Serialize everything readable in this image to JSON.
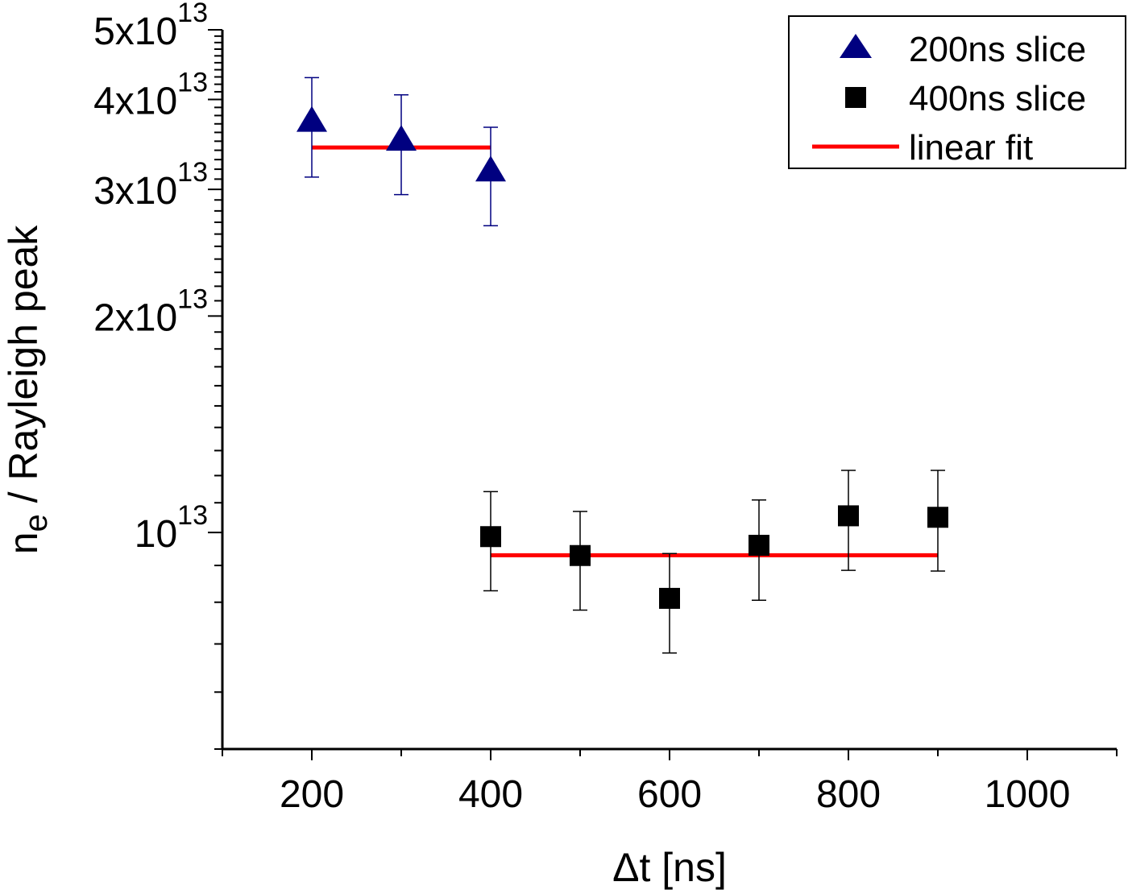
{
  "chart_data": {
    "type": "scatter",
    "xlabel": "Δt [ns]",
    "ylabel_main": "n",
    "ylabel_sub": "e",
    "ylabel_rest": " / Rayleigh peak",
    "xlim": [
      100,
      1100
    ],
    "ylim": [
      5000000000000.0,
      50000000000000.0
    ],
    "yscale": "log",
    "grid": false,
    "legend_placement": "top-right",
    "x_ticks": [
      200,
      400,
      600,
      800,
      1000
    ],
    "x_tick_labels": [
      "200",
      "400",
      "600",
      "800",
      "1000"
    ],
    "y_ticks": [
      {
        "value": 10000000000000.0,
        "mant": "",
        "base": "10",
        "exp": "13"
      },
      {
        "value": 20000000000000.0,
        "mant": "2x",
        "base": "10",
        "exp": "13"
      },
      {
        "value": 30000000000000.0,
        "mant": "3x",
        "base": "10",
        "exp": "13"
      },
      {
        "value": 40000000000000.0,
        "mant": "4x",
        "base": "10",
        "exp": "13"
      },
      {
        "value": 50000000000000.0,
        "mant": "5x",
        "base": "10",
        "exp": "13"
      }
    ],
    "series": [
      {
        "name": "200ns slice",
        "marker": "triangle",
        "color": "#000080",
        "x": [
          200,
          300,
          400
        ],
        "y": [
          37400000000000.0,
          35200000000000.0,
          31900000000000.0
        ],
        "y_err_high": [
          42900000000000.0,
          40600000000000.0,
          36600000000000.0
        ],
        "y_err_low": [
          31200000000000.0,
          29500000000000.0,
          26700000000000.0
        ]
      },
      {
        "name": "400ns slice",
        "marker": "square",
        "color": "#000000",
        "x": [
          400,
          500,
          600,
          700,
          800,
          900
        ],
        "y": [
          9870000000000.0,
          9290000000000.0,
          8100000000000.0,
          9600000000000.0,
          10550000000000.0,
          10500000000000.0
        ],
        "y_err_high": [
          11400000000000.0,
          10700000000000.0,
          9350000000000.0,
          11100000000000.0,
          12200000000000.0,
          12200000000000.0
        ],
        "y_err_low": [
          8300000000000.0,
          7800000000000.0,
          6800000000000.0,
          8050000000000.0,
          8860000000000.0,
          8840000000000.0
        ]
      }
    ],
    "fits": [
      {
        "name": "linear fit",
        "color": "#ff0000",
        "x": [
          200,
          400
        ],
        "y": [
          34300000000000.0,
          34300000000000.0
        ]
      },
      {
        "name": "linear fit",
        "color": "#ff0000",
        "x": [
          400,
          900
        ],
        "y": [
          9300000000000.0,
          9300000000000.0
        ]
      }
    ],
    "legend": [
      "200ns slice",
      "400ns slice",
      "linear fit"
    ]
  }
}
